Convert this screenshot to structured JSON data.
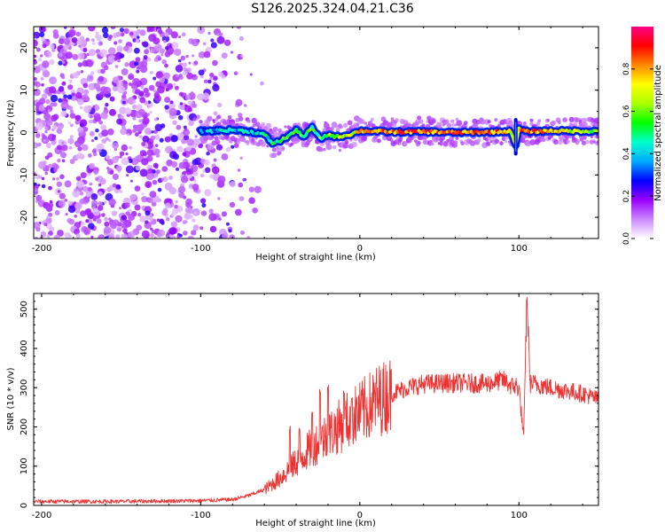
{
  "title": "S126.2025.324.04.21.C36",
  "chart_data": [
    {
      "type": "heatmap",
      "title": "S126.2025.324.04.21.C36",
      "xlabel": "Height of straight line (km)",
      "ylabel": "Frequency (Hz)",
      "xlim": [
        -205,
        150
      ],
      "ylim": [
        -25,
        25
      ],
      "xticks": [
        -200,
        -100,
        0,
        100
      ],
      "yticks": [
        -20,
        -10,
        0,
        10,
        20
      ],
      "colorbar": {
        "label": "Normalized spectral amplitude",
        "range": [
          0,
          1
        ],
        "ticks": [
          "0.0",
          "0.2",
          "0.4",
          "0.6",
          "0.8"
        ],
        "colors": [
          "#ffffff",
          "#cc88ff",
          "#9900ff",
          "#0000ff",
          "#00aaff",
          "#00ffcc",
          "#00ff00",
          "#aaff00",
          "#ffff00",
          "#ff8800",
          "#ff0000",
          "#ff0088"
        ]
      },
      "noise_region_km": [
        -205,
        -60
      ],
      "signal_onset_km": -100,
      "ridge": {
        "x": [
          -100,
          -80,
          -70,
          -60,
          -55,
          -50,
          -45,
          -40,
          -35,
          -30,
          -25,
          -20,
          -15,
          -10,
          -5,
          0,
          10,
          20,
          40,
          60,
          80,
          95,
          98,
          100,
          105,
          120,
          150
        ],
        "y": [
          0.3,
          0.6,
          0.3,
          -0.5,
          -2.5,
          -2.0,
          -0.8,
          0.5,
          -1.0,
          1.2,
          -1.5,
          -0.5,
          -1.0,
          -0.8,
          -0.3,
          0.4,
          0.3,
          0.1,
          0.2,
          0.0,
          0.1,
          0.3,
          -3.0,
          0.8,
          0.2,
          0.4,
          0.3
        ],
        "amplitude": [
          0.35,
          0.4,
          0.4,
          0.45,
          0.5,
          0.5,
          0.5,
          0.5,
          0.55,
          0.5,
          0.55,
          0.6,
          0.6,
          0.65,
          0.7,
          0.75,
          0.8,
          0.85,
          0.85,
          0.85,
          0.85,
          0.8,
          0.6,
          0.7,
          0.85,
          0.75,
          0.55
        ]
      }
    },
    {
      "type": "line",
      "xlabel": "Height of straight line (km)",
      "ylabel": "SNR (10 * v/v)",
      "xlim": [
        -205,
        150
      ],
      "ylim": [
        0,
        540
      ],
      "xticks": [
        -200,
        -100,
        0,
        100
      ],
      "yticks": [
        0,
        100,
        200,
        300,
        400,
        500
      ],
      "series": [
        {
          "name": "SNR",
          "color": "#ee3333",
          "x": [
            -205,
            -150,
            -100,
            -80,
            -70,
            -60,
            -55,
            -50,
            -45,
            -40,
            -35,
            -30,
            -25,
            -20,
            -15,
            -10,
            -5,
            0,
            5,
            10,
            20,
            30,
            40,
            60,
            80,
            90,
            95,
            100,
            103,
            105,
            107,
            110,
            120,
            140,
            150
          ],
          "y": [
            10,
            10,
            12,
            15,
            25,
            40,
            55,
            70,
            90,
            110,
            130,
            150,
            165,
            180,
            195,
            210,
            225,
            235,
            250,
            265,
            285,
            300,
            310,
            312,
            310,
            320,
            305,
            300,
            170,
            540,
            310,
            310,
            300,
            285,
            270
          ],
          "spikes": [
            {
              "x": -44,
              "y": 210
            },
            {
              "x": -38,
              "y": 200
            },
            {
              "x": -30,
              "y": 250
            },
            {
              "x": -25,
              "y": 315
            },
            {
              "x": -20,
              "y": 320
            },
            {
              "x": -10,
              "y": 315
            },
            {
              "x": -5,
              "y": 290
            },
            {
              "x": 98,
              "y": 330
            },
            {
              "x": 105,
              "y": 540
            }
          ]
        }
      ]
    }
  ]
}
